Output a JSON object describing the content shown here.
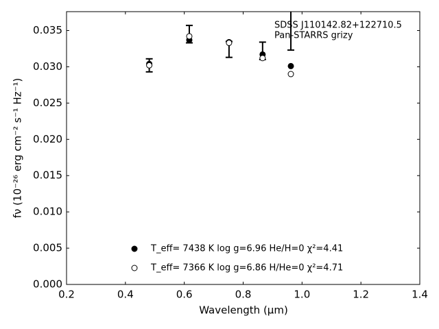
{
  "chart_data": {
    "type": "scatter",
    "annotations": [
      "SDSS J110142.82+122710.5",
      "Pan-STARRS grizy"
    ],
    "x_label": "Wavelength (μm)",
    "y_label": "fν (10⁻²⁶ erg cm⁻² s⁻¹ Hz⁻¹)",
    "x": [
      0.481,
      0.617,
      0.752,
      0.866,
      0.962
    ],
    "series": [
      {
        "color": "#000000",
        "marker": "errorbar",
        "values": [
          0.0302,
          0.0345,
          0.0324,
          0.0322,
          0.036
        ],
        "errors": [
          0.0009,
          0.0012,
          0.0011,
          0.0012,
          0.0037
        ]
      },
      {
        "name": "T_eff=  7438 K  log g=6.96  He/H=0  χ²=4.41",
        "color": "#000000",
        "marker": "filled",
        "values": [
          0.0304,
          0.0337,
          0.0334,
          0.0317,
          0.0301
        ]
      },
      {
        "name": "T_eff=  7366 K  log g=6.86  H/He=0  χ²=4.71",
        "color": "#000000",
        "marker": "open",
        "values": [
          0.0302,
          0.0342,
          0.0333,
          0.0312,
          0.029
        ]
      }
    ],
    "xlim": [
      0.2,
      1.4
    ],
    "xticks": [
      0.2,
      0.4,
      0.6,
      0.8,
      {
        "value": 1,
        "label": "1.0"
      },
      1.2,
      1.4
    ],
    "ylim": [
      0,
      0.0376
    ],
    "yticks": [
      {
        "value": 0,
        "label": "0.000"
      },
      0.005,
      {
        "value": 0.01,
        "label": "0.010"
      },
      0.015,
      {
        "value": 0.02,
        "label": "0.020"
      },
      0.025,
      {
        "value": 0.03,
        "label": "0.030"
      },
      0.035
    ],
    "grid": false
  }
}
